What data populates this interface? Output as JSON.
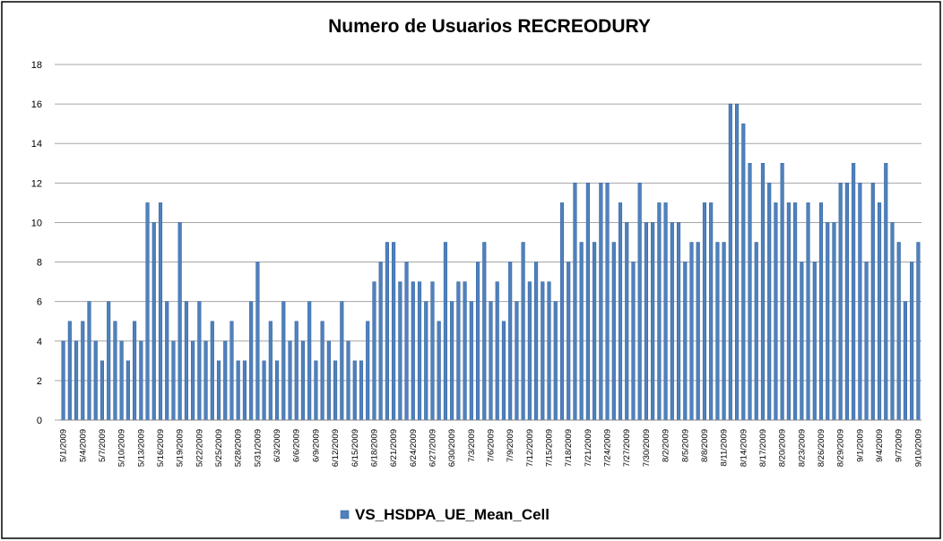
{
  "chart_data": {
    "type": "bar",
    "title": "Numero de Usuarios RECREODURY",
    "categories": [
      "5/1/2009",
      null,
      null,
      "5/4/2009",
      null,
      null,
      "5/7/2009",
      null,
      null,
      "5/10/2009",
      null,
      null,
      "5/13/2009",
      null,
      null,
      "5/16/2009",
      null,
      null,
      "5/19/2009",
      null,
      null,
      "5/22/2009",
      null,
      null,
      "5/25/2009",
      null,
      null,
      "5/28/2009",
      null,
      null,
      "5/31/2009",
      null,
      null,
      "6/3/2009",
      null,
      null,
      "6/6/2009",
      null,
      null,
      "6/9/2009",
      null,
      null,
      "6/12/2009",
      null,
      null,
      "6/15/2009",
      null,
      null,
      "6/18/2009",
      null,
      null,
      "6/21/2009",
      null,
      null,
      "6/24/2009",
      null,
      null,
      "6/27/2009",
      null,
      null,
      "6/30/2009",
      null,
      null,
      "7/3/2009",
      null,
      null,
      "7/6/2009",
      null,
      null,
      "7/9/2009",
      null,
      null,
      "7/12/2009",
      null,
      null,
      "7/15/2009",
      null,
      null,
      "7/18/2009",
      null,
      null,
      "7/21/2009",
      null,
      null,
      "7/24/2009",
      null,
      null,
      "7/27/2009",
      null,
      null,
      "7/30/2009",
      null,
      null,
      "8/2/2009",
      null,
      null,
      "8/5/2009",
      null,
      null,
      "8/8/2009",
      null,
      null,
      "8/11/2009",
      null,
      null,
      "8/14/2009",
      null,
      null,
      "8/17/2009",
      null,
      null,
      "8/20/2009",
      null,
      null,
      "8/23/2009",
      null,
      null,
      "8/26/2009",
      null,
      null,
      "8/29/2009",
      null,
      null,
      "9/1/2009",
      null,
      null,
      "9/4/2009",
      null,
      null,
      "9/7/2009",
      null,
      null,
      "9/10/2009"
    ],
    "series": [
      {
        "name": "VS_HSDPA_UE_Mean_Cell",
        "color": "#4f81bd",
        "values": [
          4,
          5,
          4,
          5,
          6,
          4,
          3,
          6,
          5,
          4,
          3,
          5,
          4,
          11,
          10,
          11,
          6,
          4,
          10,
          6,
          4,
          6,
          4,
          5,
          3,
          4,
          5,
          3,
          3,
          6,
          8,
          3,
          5,
          3,
          6,
          4,
          5,
          4,
          6,
          3,
          5,
          4,
          3,
          6,
          4,
          3,
          3,
          5,
          7,
          8,
          9,
          9,
          7,
          8,
          7,
          7,
          6,
          7,
          5,
          9,
          6,
          7,
          7,
          6,
          8,
          9,
          6,
          7,
          5,
          8,
          6,
          9,
          7,
          8,
          7,
          7,
          6,
          11,
          8,
          12,
          9,
          12,
          9,
          12,
          12,
          9,
          11,
          10,
          8,
          12,
          10,
          10,
          11,
          11,
          10,
          10,
          8,
          9,
          9,
          11,
          11,
          9,
          9,
          16,
          16,
          15,
          13,
          9,
          13,
          12,
          11,
          13,
          11,
          11,
          8,
          11,
          8,
          11,
          10,
          10,
          12,
          12,
          13,
          12,
          8,
          12,
          11,
          13,
          10,
          9,
          6,
          8,
          9
        ]
      }
    ],
    "ylim": [
      0,
      18
    ],
    "yticks": [
      0,
      2,
      4,
      6,
      8,
      10,
      12,
      14,
      16,
      18
    ],
    "grid": true,
    "legend": "bottom"
  }
}
